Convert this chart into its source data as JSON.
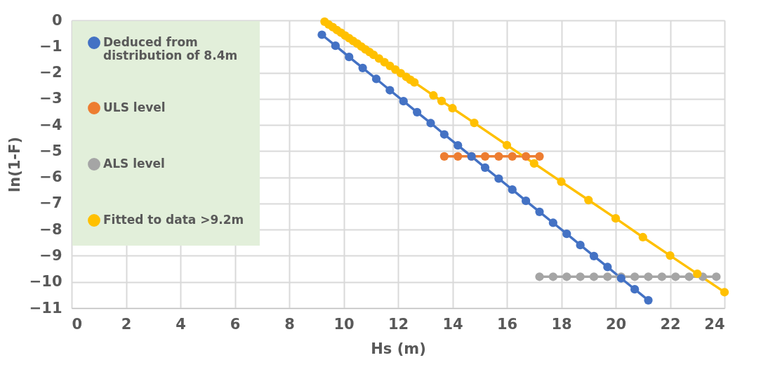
{
  "chart_data": {
    "type": "line",
    "xlabel": "Hs  (m)",
    "ylabel": "ln(1-F)",
    "xlim": [
      0,
      24
    ],
    "ylim": [
      -11,
      0
    ],
    "xticks": [
      0,
      2,
      4,
      6,
      8,
      10,
      12,
      14,
      16,
      18,
      20,
      22,
      24
    ],
    "yticks": [
      -11,
      -10,
      -9,
      -8,
      -7,
      -6,
      -5,
      -4,
      -3,
      -2,
      -1,
      0
    ],
    "grid": true,
    "legend": "top left",
    "marker": "circle",
    "line_style": "solid",
    "series": [
      {
        "name": "Deduced from distribution of 8.4m",
        "color": "#4472c4",
        "x": [
          9.2,
          9.7,
          10.2,
          10.7,
          11.2,
          11.7,
          12.2,
          12.7,
          13.2,
          13.7,
          14.2,
          14.7,
          15.2,
          15.7,
          16.2,
          16.7,
          17.2,
          17.7,
          18.2,
          18.7,
          19.2,
          19.7,
          20.2,
          20.7,
          21.2
        ],
        "values": [
          -0.55,
          -0.97,
          -1.4,
          -1.82,
          -2.24,
          -2.67,
          -3.09,
          -3.51,
          -3.93,
          -4.36,
          -4.78,
          -5.2,
          -5.63,
          -6.05,
          -6.47,
          -6.9,
          -7.32,
          -7.74,
          -8.16,
          -8.59,
          -9.01,
          -9.43,
          -9.86,
          -10.28,
          -10.7
        ]
      },
      {
        "name": "ULS level",
        "color": "#ed7d31",
        "x": [
          13.7,
          14.2,
          14.7,
          15.2,
          15.7,
          16.2,
          16.7,
          17.2
        ],
        "values": [
          -5.2,
          -5.2,
          -5.2,
          -5.2,
          -5.2,
          -5.2,
          -5.2,
          -5.2
        ]
      },
      {
        "name": "ALS level",
        "color": "#a5a5a5",
        "x": [
          17.2,
          17.7,
          18.2,
          18.7,
          19.2,
          19.7,
          20.2,
          20.7,
          21.2,
          21.7,
          22.2,
          22.7,
          23.2,
          23.7
        ],
        "values": [
          -9.8,
          -9.8,
          -9.8,
          -9.8,
          -9.8,
          -9.8,
          -9.8,
          -9.8,
          -9.8,
          -9.8,
          -9.8,
          -9.8,
          -9.8,
          -9.8
        ]
      },
      {
        "name": "Fitted to data >9.2m",
        "color": "#ffc000",
        "x": [
          9.3,
          9.45,
          9.6,
          9.75,
          9.9,
          10.05,
          10.2,
          10.35,
          10.5,
          10.65,
          10.8,
          10.95,
          11.1,
          11.3,
          11.5,
          11.7,
          11.9,
          12.1,
          12.3,
          12.45,
          12.6,
          13.3,
          13.6,
          14.0,
          14.8,
          16.0,
          17.0,
          18.0,
          19.0,
          20.0,
          21.0,
          22.0,
          23.0,
          24.0
        ],
        "values": [
          -0.05,
          -0.16,
          -0.26,
          -0.37,
          -0.47,
          -0.58,
          -0.68,
          -0.79,
          -0.89,
          -1.0,
          -1.11,
          -1.21,
          -1.32,
          -1.46,
          -1.6,
          -1.74,
          -1.88,
          -2.02,
          -2.16,
          -2.27,
          -2.37,
          -2.87,
          -3.08,
          -3.36,
          -3.92,
          -4.77,
          -5.47,
          -6.17,
          -6.87,
          -7.57,
          -8.29,
          -8.99,
          -9.69,
          -10.39
        ]
      }
    ]
  }
}
